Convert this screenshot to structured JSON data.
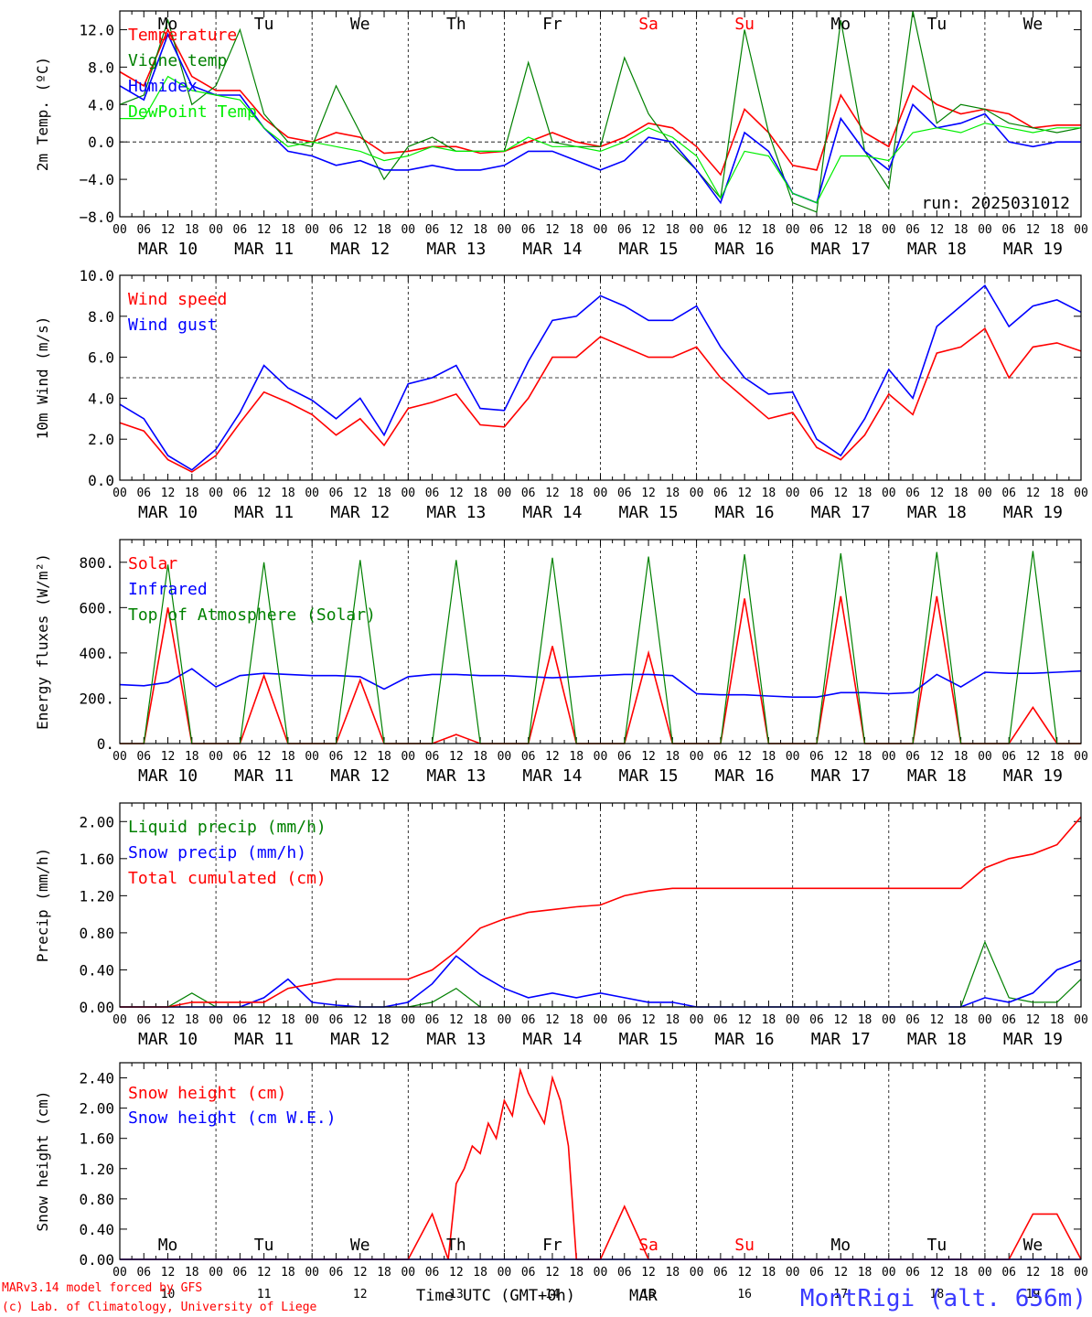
{
  "colors": {
    "red": "#ff0000",
    "green": "#008000",
    "blue": "#0000ff",
    "lime": "#00ee00",
    "title_blue": "#3a3aff"
  },
  "days": [
    "Mo",
    "Tu",
    "We",
    "Th",
    "Fr",
    "Sa",
    "Su",
    "Mo",
    "Tu",
    "We"
  ],
  "weekend_days": [
    5,
    6
  ],
  "dates": [
    "MAR 10",
    "MAR 11",
    "MAR 12",
    "MAR 13",
    "MAR 14",
    "MAR 15",
    "MAR 16",
    "MAR 17",
    "MAR 18",
    "MAR 19"
  ],
  "hour_labels": [
    "00",
    "06",
    "12",
    "18"
  ],
  "day_numbers": [
    "10",
    "11",
    "12",
    "13",
    "14",
    "15",
    "16",
    "17",
    "18",
    "19"
  ],
  "footer": {
    "credit_line1": "MARv3.14 model forced by GFS",
    "credit_line2": "(c) Lab. of Climatology, University of Liege",
    "xlabel": "Time UTC (GMT+0h)",
    "month": "MAR",
    "station": "MontRigi (alt. 656m)"
  },
  "chart_data": [
    {
      "type": "line",
      "ylabel": "2m Temp. (ºC)",
      "yticks": [
        "12.0",
        "8.0",
        "4.0",
        "0.0",
        "−4.0",
        "−8.0"
      ],
      "ylim": [
        -8,
        14
      ],
      "refline": 0,
      "annotation": "run: 2025031012",
      "x_hours": [
        0,
        6,
        12,
        18,
        24,
        30,
        36,
        42,
        48,
        54,
        60,
        66,
        72,
        78,
        84,
        90,
        96,
        102,
        108,
        114,
        120,
        126,
        132,
        138,
        144,
        150,
        156,
        162,
        168,
        174,
        180,
        186,
        192,
        198,
        204,
        210,
        216,
        222,
        228,
        234,
        240
      ],
      "series": [
        {
          "name": "Temperature",
          "color": "red",
          "values": [
            7.5,
            6.0,
            12.0,
            7.0,
            5.5,
            5.5,
            2.5,
            0.5,
            0.0,
            1.0,
            0.5,
            -1.2,
            -1.0,
            -0.5,
            -0.5,
            -1.2,
            -1.0,
            0.0,
            1.0,
            0.0,
            -0.5,
            0.5,
            2.0,
            1.5,
            -0.5,
            -3.5,
            3.5,
            1.0,
            -2.5,
            -3.0,
            5.0,
            1.0,
            -0.5,
            6.0,
            4.0,
            3.0,
            3.5,
            3.0,
            1.5,
            1.8,
            1.8
          ]
        },
        {
          "name": "Vigne temp",
          "color": "green",
          "values": [
            4.0,
            5.0,
            13.0,
            4.0,
            6.0,
            12.0,
            3.0,
            0.0,
            -0.5,
            6.0,
            1.0,
            -4.0,
            -0.5,
            0.5,
            -1.0,
            -1.0,
            -1.0,
            8.5,
            0.0,
            -0.5,
            -0.5,
            9.0,
            3.0,
            -0.5,
            -3.0,
            -6.0,
            12.0,
            1.0,
            -6.5,
            -7.5,
            13.0,
            -1.0,
            -5.0,
            14.0,
            2.0,
            4.0,
            3.5,
            2.0,
            1.5,
            1.0,
            1.5
          ]
        },
        {
          "name": "Humidex",
          "color": "blue",
          "values": [
            6.0,
            4.5,
            11.5,
            6.0,
            5.0,
            5.0,
            1.5,
            -1.0,
            -1.5,
            -2.5,
            -2.0,
            -3.0,
            -3.0,
            -2.5,
            -3.0,
            -3.0,
            -2.5,
            -1.0,
            -1.0,
            -2.0,
            -3.0,
            -2.0,
            0.5,
            0.0,
            -3.0,
            -6.5,
            1.0,
            -1.0,
            -5.5,
            -6.5,
            2.5,
            -1.0,
            -3.0,
            4.0,
            1.5,
            2.0,
            3.0,
            0.0,
            -0.5,
            0.0,
            0.0
          ]
        },
        {
          "name": "DewPoint Temp",
          "color": "lime",
          "values": [
            2.5,
            2.5,
            7.0,
            5.5,
            5.0,
            4.5,
            1.5,
            -0.5,
            0.0,
            -0.5,
            -1.0,
            -2.0,
            -1.5,
            -0.5,
            -1.0,
            -1.0,
            -1.0,
            0.5,
            -0.5,
            -0.5,
            -1.0,
            0.0,
            1.5,
            0.5,
            -1.5,
            -6.0,
            -1.0,
            -1.5,
            -5.5,
            -6.5,
            -1.5,
            -1.5,
            -2.0,
            1.0,
            1.5,
            1.0,
            2.0,
            1.5,
            1.0,
            1.5,
            1.5
          ]
        }
      ]
    },
    {
      "type": "line",
      "ylabel": "10m Wind (m/s)",
      "yticks": [
        "10.0",
        "8.0",
        "6.0",
        "4.0",
        "2.0",
        "0.0"
      ],
      "ylim": [
        0,
        10
      ],
      "refline": 5,
      "x_hours": [
        0,
        6,
        12,
        18,
        24,
        30,
        36,
        42,
        48,
        54,
        60,
        66,
        72,
        78,
        84,
        90,
        96,
        102,
        108,
        114,
        120,
        126,
        132,
        138,
        144,
        150,
        156,
        162,
        168,
        174,
        180,
        186,
        192,
        198,
        204,
        210,
        216,
        222,
        228,
        234,
        240
      ],
      "series": [
        {
          "name": "Wind speed",
          "color": "red",
          "values": [
            2.8,
            2.4,
            1.0,
            0.4,
            1.2,
            2.8,
            4.3,
            3.8,
            3.2,
            2.2,
            3.0,
            1.7,
            3.5,
            3.8,
            4.2,
            2.7,
            2.6,
            4.0,
            6.0,
            6.0,
            7.0,
            6.5,
            6.0,
            6.0,
            6.5,
            5.0,
            4.0,
            3.0,
            3.3,
            1.6,
            1.0,
            2.2,
            4.2,
            3.2,
            6.2,
            6.5,
            7.4,
            5.0,
            6.5,
            6.7,
            6.3
          ]
        },
        {
          "name": "Wind gust",
          "color": "blue",
          "values": [
            3.7,
            3.0,
            1.2,
            0.5,
            1.5,
            3.3,
            5.6,
            4.5,
            3.9,
            3.0,
            4.0,
            2.2,
            4.7,
            5.0,
            5.6,
            3.5,
            3.4,
            5.8,
            7.8,
            8.0,
            9.0,
            8.5,
            7.8,
            7.8,
            8.5,
            6.5,
            5.0,
            4.2,
            4.3,
            2.0,
            1.2,
            3.0,
            5.4,
            4.0,
            7.5,
            8.5,
            9.5,
            7.5,
            8.5,
            8.8,
            8.2
          ]
        }
      ]
    },
    {
      "type": "line",
      "ylabel": "Energy fluxes (W/m²)",
      "yticks": [
        "800.",
        "600.",
        "400.",
        "200.",
        "0."
      ],
      "ylim": [
        0,
        900
      ],
      "x_hours": [
        0,
        6,
        12,
        18,
        24,
        30,
        36,
        42,
        48,
        54,
        60,
        66,
        72,
        78,
        84,
        90,
        96,
        102,
        108,
        114,
        120,
        126,
        132,
        138,
        144,
        150,
        156,
        162,
        168,
        174,
        180,
        186,
        192,
        198,
        204,
        210,
        216,
        222,
        228,
        234,
        240
      ],
      "series": [
        {
          "name": "Solar",
          "color": "red",
          "values": [
            0,
            0,
            600,
            0,
            0,
            0,
            300,
            0,
            0,
            0,
            280,
            0,
            0,
            0,
            40,
            0,
            0,
            0,
            430,
            0,
            0,
            0,
            400,
            0,
            0,
            0,
            640,
            0,
            0,
            0,
            650,
            0,
            0,
            0,
            650,
            0,
            0,
            0,
            160,
            0,
            0
          ]
        },
        {
          "name": "Infrared",
          "color": "blue",
          "values": [
            260,
            255,
            270,
            330,
            250,
            300,
            310,
            305,
            300,
            300,
            295,
            240,
            295,
            305,
            305,
            300,
            300,
            295,
            290,
            295,
            300,
            305,
            305,
            300,
            220,
            215,
            215,
            210,
            205,
            205,
            225,
            225,
            220,
            225,
            305,
            250,
            315,
            310,
            310,
            315,
            320
          ]
        },
        {
          "name": "Top of Atmosphere (Solar)",
          "color": "green",
          "values": [
            0,
            0,
            790,
            0,
            0,
            0,
            800,
            0,
            0,
            0,
            810,
            0,
            0,
            0,
            810,
            0,
            0,
            0,
            820,
            0,
            0,
            0,
            825,
            0,
            0,
            0,
            835,
            0,
            0,
            0,
            840,
            0,
            0,
            0,
            845,
            0,
            0,
            0,
            850,
            0,
            0
          ]
        }
      ]
    },
    {
      "type": "line",
      "ylabel": "Precip (mm/h)",
      "yticks": [
        "2.00",
        "1.60",
        "1.20",
        "0.80",
        "0.40",
        "0.00"
      ],
      "ylim": [
        0,
        2.2
      ],
      "x_hours": [
        0,
        6,
        12,
        18,
        24,
        30,
        36,
        42,
        48,
        54,
        60,
        66,
        72,
        78,
        84,
        90,
        96,
        102,
        108,
        114,
        120,
        126,
        132,
        138,
        144,
        150,
        156,
        162,
        168,
        174,
        180,
        186,
        192,
        198,
        204,
        210,
        216,
        222,
        228,
        234,
        240
      ],
      "series": [
        {
          "name": "Liquid precip (mm/h)",
          "color": "green",
          "values": [
            0,
            0,
            0,
            0.15,
            0,
            0,
            0,
            0,
            0,
            0,
            0,
            0,
            0,
            0.05,
            0.2,
            0,
            0,
            0,
            0,
            0,
            0,
            0,
            0,
            0,
            0,
            0,
            0,
            0,
            0,
            0,
            0,
            0,
            0,
            0,
            0,
            0,
            0.7,
            0.1,
            0.05,
            0.05,
            0.3
          ]
        },
        {
          "name": "Snow precip (mm/h)",
          "color": "blue",
          "values": [
            0,
            0,
            0,
            0,
            0,
            0,
            0.1,
            0.3,
            0.05,
            0.02,
            0,
            0,
            0.05,
            0.25,
            0.55,
            0.35,
            0.2,
            0.1,
            0.15,
            0.1,
            0.15,
            0.1,
            0.05,
            0.05,
            0,
            0,
            0,
            0,
            0,
            0,
            0,
            0,
            0,
            0,
            0,
            0,
            0.1,
            0.05,
            0.15,
            0.4,
            0.5
          ]
        },
        {
          "name": "Total cumulated (cm)",
          "color": "red",
          "values": [
            0,
            0,
            0,
            0.05,
            0.05,
            0.05,
            0.05,
            0.2,
            0.25,
            0.3,
            0.3,
            0.3,
            0.3,
            0.4,
            0.6,
            0.85,
            0.95,
            1.02,
            1.05,
            1.08,
            1.1,
            1.2,
            1.25,
            1.28,
            1.28,
            1.28,
            1.28,
            1.28,
            1.28,
            1.28,
            1.28,
            1.28,
            1.28,
            1.28,
            1.28,
            1.28,
            1.5,
            1.6,
            1.65,
            1.75,
            2.05
          ]
        }
      ]
    },
    {
      "type": "line",
      "ylabel": "Snow height (cm)",
      "yticks": [
        "2.40",
        "2.00",
        "1.60",
        "1.20",
        "0.80",
        "0.40",
        "0.00"
      ],
      "ylim": [
        0,
        2.6
      ],
      "x_hours": [
        0,
        6,
        12,
        18,
        24,
        30,
        36,
        42,
        48,
        54,
        60,
        66,
        72,
        78,
        82,
        84,
        86,
        88,
        90,
        92,
        94,
        96,
        98,
        100,
        102,
        104,
        106,
        108,
        110,
        112,
        114,
        116,
        118,
        120,
        126,
        132,
        138,
        144,
        150,
        156,
        162,
        168,
        174,
        180,
        186,
        192,
        198,
        204,
        210,
        216,
        222,
        228,
        234,
        240
      ],
      "series": [
        {
          "name": "Snow height (cm)",
          "color": "red",
          "values": [
            0,
            0,
            0,
            0,
            0,
            0,
            0,
            0,
            0,
            0,
            0,
            0,
            0,
            0.6,
            0,
            1.0,
            1.2,
            1.5,
            1.4,
            1.8,
            1.6,
            2.1,
            1.9,
            2.5,
            2.2,
            2.0,
            1.8,
            2.4,
            2.1,
            1.5,
            0.0,
            0,
            0,
            0,
            0.7,
            0,
            0,
            0,
            0,
            0,
            0,
            0,
            0,
            0,
            0,
            0,
            0,
            0,
            0,
            0,
            0,
            0.6,
            0.6,
            0
          ]
        },
        {
          "name": "Snow height (cm W.E.)",
          "color": "blue",
          "values": [
            0,
            0,
            0,
            0,
            0,
            0,
            0,
            0,
            0,
            0,
            0,
            0,
            0,
            0,
            0,
            0,
            0,
            0,
            0,
            0,
            0,
            0,
            0,
            0,
            0,
            0,
            0,
            0,
            0,
            0,
            0,
            0,
            0,
            0,
            0,
            0,
            0,
            0,
            0,
            0,
            0,
            0,
            0,
            0,
            0,
            0,
            0,
            0,
            0,
            0,
            0,
            0,
            0,
            0
          ]
        }
      ]
    }
  ]
}
